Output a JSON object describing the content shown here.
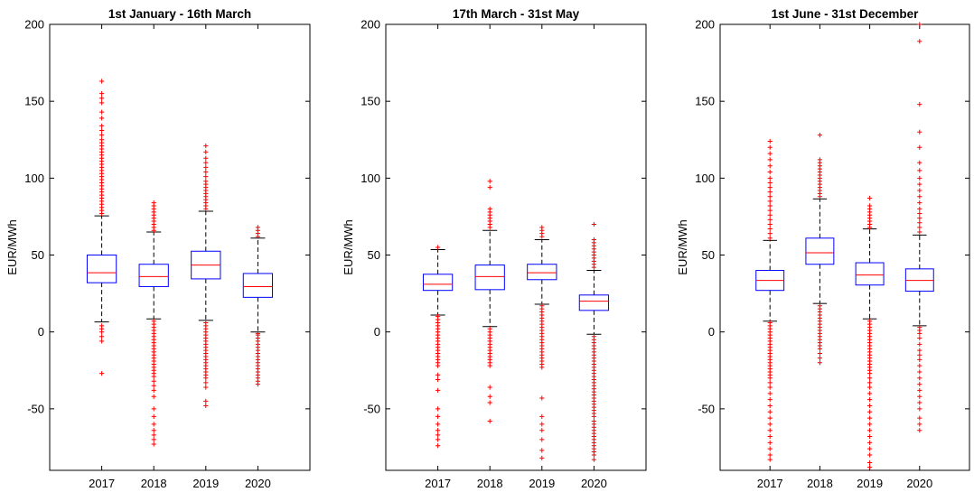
{
  "chart_data": [
    {
      "type": "box",
      "title": "1st January - 16th March",
      "ylabel": "EUR/MWh",
      "xlabel": "",
      "ylim": [
        -90,
        200
      ],
      "yticks": [
        -50,
        0,
        50,
        100,
        150,
        200
      ],
      "categories": [
        "2017",
        "2018",
        "2019",
        "2020"
      ],
      "boxes": [
        {
          "year": "2017",
          "whisker_low": 6.5,
          "q1": 32,
          "median": 38.5,
          "q3": 50,
          "whisker_high": 75.5,
          "outliers": [
            163,
            155,
            152,
            149,
            143,
            139,
            134,
            131,
            128,
            125,
            123,
            121,
            119,
            117,
            115,
            113,
            111,
            109,
            107,
            105,
            103,
            101,
            99,
            97,
            95,
            93,
            91,
            89,
            87,
            85,
            83,
            81,
            79,
            77,
            4,
            2,
            0,
            -3,
            -6,
            -27
          ]
        },
        {
          "year": "2018",
          "whisker_low": 8.5,
          "q1": 29.5,
          "median": 36,
          "q3": 44,
          "whisker_high": 65,
          "outliers": [
            84,
            82,
            80,
            78,
            76,
            74,
            72,
            70,
            68,
            66,
            7,
            5,
            3,
            1,
            -1,
            -3,
            -5,
            -7,
            -9,
            -11,
            -13,
            -15,
            -17,
            -19,
            -21,
            -23,
            -25,
            -27,
            -29,
            -32,
            -35,
            -38,
            -42,
            -50,
            -55,
            -60,
            -64,
            -67,
            -70,
            -73
          ]
        },
        {
          "year": "2019",
          "whisker_low": 7.5,
          "q1": 34.5,
          "median": 43.5,
          "q3": 52.5,
          "whisker_high": 78.5,
          "outliers": [
            121,
            117,
            113,
            110,
            107,
            104,
            101,
            98,
            96,
            94,
            92,
            90,
            88,
            86,
            84,
            82,
            80,
            6,
            4,
            2,
            0,
            -2,
            -4,
            -6,
            -8,
            -10,
            -12,
            -14,
            -16,
            -18,
            -20,
            -22,
            -24,
            -26,
            -28,
            -30,
            -33,
            -36,
            -45,
            -48
          ]
        },
        {
          "year": "2020",
          "whisker_low": 0,
          "q1": 22.5,
          "median": 29.5,
          "q3": 38,
          "whisker_high": 61,
          "outliers": [
            68,
            66,
            64,
            62,
            -1,
            -2,
            -4,
            -6,
            -8,
            -10,
            -12,
            -14,
            -16,
            -18,
            -20,
            -22,
            -24,
            -26,
            -28,
            -30,
            -32,
            -34
          ]
        }
      ]
    },
    {
      "type": "box",
      "title": "17th March - 31st May",
      "ylabel": "EUR/MWh",
      "xlabel": "",
      "ylim": [
        -90,
        200
      ],
      "yticks": [
        -50,
        0,
        50,
        100,
        150,
        200
      ],
      "categories": [
        "2017",
        "2018",
        "2019",
        "2020"
      ],
      "boxes": [
        {
          "year": "2017",
          "whisker_low": 11,
          "q1": 27,
          "median": 31,
          "q3": 37.5,
          "whisker_high": 53.5,
          "outliers": [
            55,
            10,
            8,
            6,
            4,
            2,
            0,
            -2,
            -4,
            -6,
            -8,
            -10,
            -12,
            -14,
            -16,
            -18,
            -20,
            -22,
            -28,
            -31,
            -38,
            -50,
            -55,
            -60,
            -64,
            -67,
            -70,
            -74
          ]
        },
        {
          "year": "2018",
          "whisker_low": 3.5,
          "q1": 27.5,
          "median": 36,
          "q3": 43.5,
          "whisker_high": 66,
          "outliers": [
            98,
            94,
            80,
            78,
            76,
            74,
            72,
            70,
            68,
            2,
            0,
            -2,
            -4,
            -6,
            -8,
            -10,
            -12,
            -14,
            -16,
            -18,
            -20,
            -22,
            -36,
            -42,
            -46,
            -58
          ]
        },
        {
          "year": "2019",
          "whisker_low": 18,
          "q1": 34,
          "median": 38.5,
          "q3": 44,
          "whisker_high": 60,
          "outliers": [
            68,
            66,
            64,
            62,
            17,
            15,
            13,
            11,
            9,
            7,
            5,
            3,
            1,
            -1,
            -3,
            -5,
            -7,
            -9,
            -11,
            -13,
            -15,
            -17,
            -19,
            -21,
            -23,
            -43,
            -55,
            -60,
            -64,
            -70,
            -77,
            -82
          ]
        },
        {
          "year": "2020",
          "whisker_low": -1.5,
          "q1": 14,
          "median": 20,
          "q3": 24,
          "whisker_high": 40,
          "outliers": [
            70,
            60,
            58,
            56,
            54,
            52,
            50,
            48,
            46,
            44,
            42,
            -3,
            -5,
            -7,
            -9,
            -11,
            -13,
            -15,
            -17,
            -19,
            -21,
            -23,
            -25,
            -27,
            -29,
            -31,
            -33,
            -35,
            -37,
            -39,
            -41,
            -43,
            -45,
            -47,
            -49,
            -51,
            -53,
            -55,
            -58,
            -60,
            -62,
            -64,
            -66,
            -68,
            -70,
            -72,
            -74,
            -76,
            -78,
            -80,
            -83
          ]
        }
      ]
    },
    {
      "type": "box",
      "title": "1st June - 31st December",
      "ylabel": "EUR/MWh",
      "xlabel": "",
      "ylim": [
        -90,
        200
      ],
      "yticks": [
        -50,
        0,
        50,
        100,
        150,
        200
      ],
      "categories": [
        "2017",
        "2018",
        "2019",
        "2020"
      ],
      "boxes": [
        {
          "year": "2017",
          "whisker_low": 7,
          "q1": 27,
          "median": 33.5,
          "q3": 40,
          "whisker_high": 59.5,
          "outliers": [
            124,
            120,
            116,
            112,
            108,
            104,
            100,
            97,
            94,
            91,
            88,
            85,
            82,
            79,
            76,
            73,
            70,
            67,
            64,
            61,
            6,
            4,
            2,
            0,
            -2,
            -4,
            -6,
            -8,
            -10,
            -12,
            -14,
            -16,
            -18,
            -20,
            -22,
            -24,
            -26,
            -28,
            -30,
            -33,
            -36,
            -40,
            -44,
            -48,
            -52,
            -56,
            -60,
            -64,
            -68,
            -72,
            -76,
            -80,
            -83
          ]
        },
        {
          "year": "2018",
          "whisker_low": 18.5,
          "q1": 44,
          "median": 51.5,
          "q3": 61,
          "whisker_high": 86.5,
          "outliers": [
            128,
            112,
            110,
            108,
            106,
            104,
            102,
            100,
            98,
            96,
            94,
            92,
            90,
            88,
            17,
            15,
            13,
            11,
            9,
            7,
            5,
            3,
            1,
            -1,
            -3,
            -5,
            -7,
            -9,
            -11,
            -14,
            -17,
            -20
          ]
        },
        {
          "year": "2019",
          "whisker_low": 8.5,
          "q1": 30.5,
          "median": 37,
          "q3": 45,
          "whisker_high": 67,
          "outliers": [
            87,
            82,
            80,
            78,
            76,
            74,
            72,
            70,
            68,
            7,
            5,
            3,
            1,
            -1,
            -3,
            -5,
            -7,
            -9,
            -11,
            -13,
            -15,
            -17,
            -19,
            -21,
            -23,
            -25,
            -27,
            -30,
            -33,
            -36,
            -40,
            -44,
            -48,
            -52,
            -56,
            -60,
            -64,
            -68,
            -72,
            -76,
            -80,
            -85,
            -88
          ]
        },
        {
          "year": "2020",
          "whisker_low": 4,
          "q1": 26.5,
          "median": 33.5,
          "q3": 41,
          "whisker_high": 63,
          "outliers": [
            200,
            189,
            148,
            130,
            120,
            110,
            105,
            100,
            96,
            92,
            88,
            84,
            80,
            77,
            74,
            71,
            68,
            65,
            3,
            1,
            -1,
            -4,
            -8,
            -12,
            -15,
            -18,
            -22,
            -26,
            -30,
            -34,
            -38,
            -42,
            -46,
            -50,
            -56,
            -60,
            -64
          ]
        }
      ]
    }
  ],
  "colors": {
    "box": "#0000ff",
    "median": "#ff0000",
    "whisker": "#000000",
    "outlier": "#ff0000",
    "axes": "#000000"
  }
}
